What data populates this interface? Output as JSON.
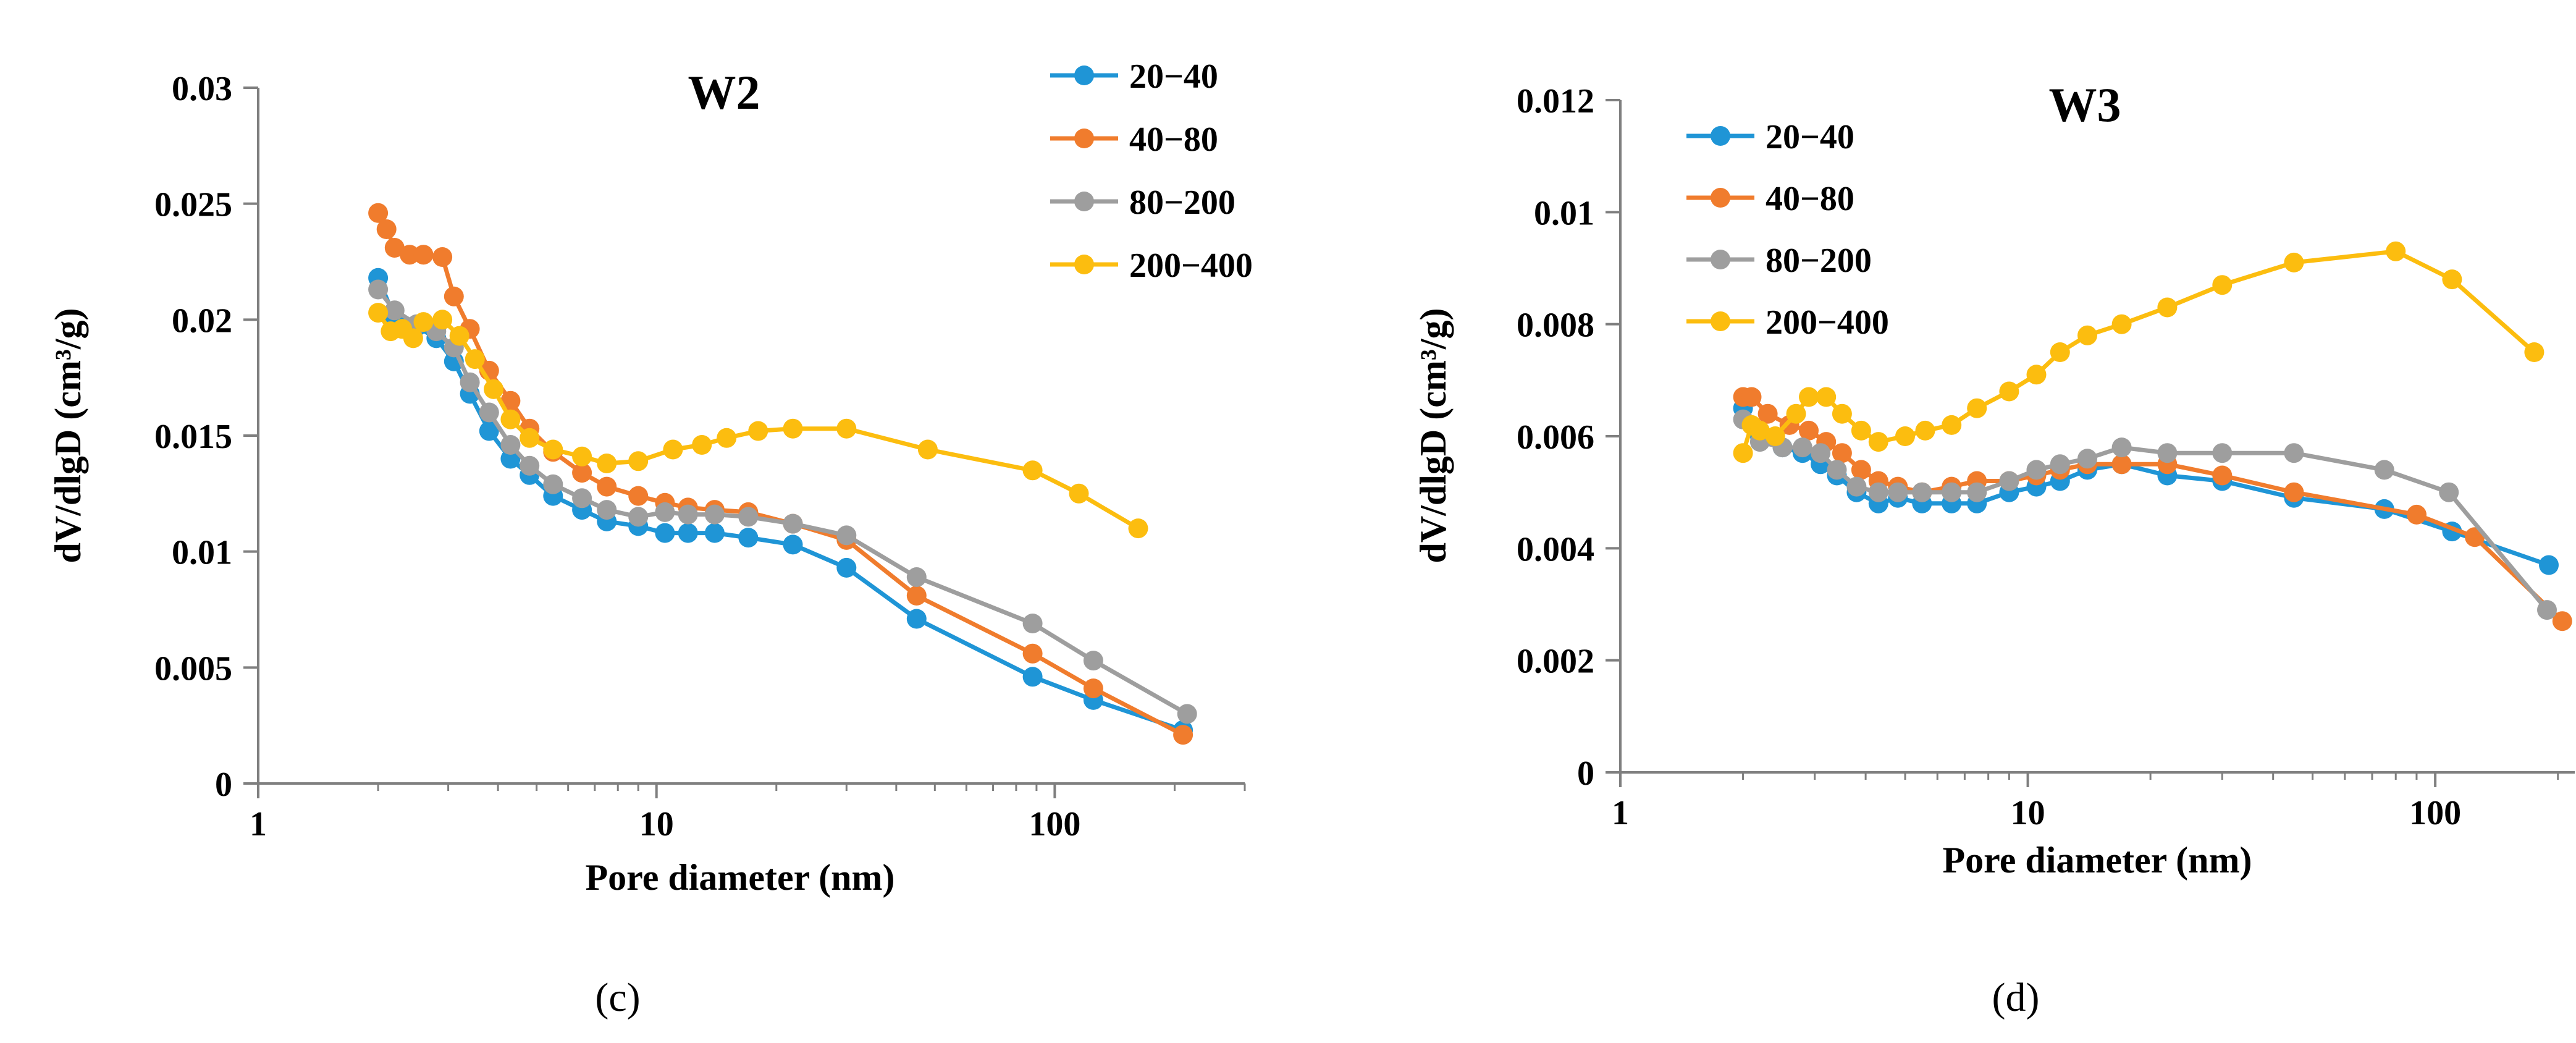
{
  "chart_data": [
    {
      "type": "line",
      "panel_label": "(c)",
      "title": "W2",
      "xlabel": "Pore diameter (nm)",
      "ylabel": "dV/dlgD (cm³/g)",
      "xscale": "log",
      "xlim": [
        1,
        300
      ],
      "ylim": [
        0,
        0.03
      ],
      "x_ticks": [
        1,
        10,
        100
      ],
      "x_tick_labels": [
        "1",
        "10",
        "100"
      ],
      "y_ticks": [
        0,
        0.005,
        0.01,
        0.015,
        0.02,
        0.025,
        0.03
      ],
      "y_tick_labels": [
        "0",
        "0.005",
        "0.01",
        "0.015",
        "0.02",
        "0.025",
        "0.03"
      ],
      "legend_position": "top-right",
      "grid": false,
      "series": [
        {
          "name": "20−40",
          "color": "#1f95d6",
          "x": [
            2.0,
            2.2,
            2.5,
            2.8,
            3.1,
            3.4,
            3.8,
            4.3,
            4.8,
            5.5,
            6.5,
            7.5,
            9.0,
            10.5,
            12.0,
            14.0,
            17.0,
            22.0,
            30.0,
            45.0,
            88.0,
            125.0,
            210.0
          ],
          "values": [
            0.0218,
            0.0201,
            0.0197,
            0.0192,
            0.0182,
            0.0168,
            0.0152,
            0.014,
            0.0133,
            0.0124,
            0.0118,
            0.0113,
            0.0111,
            0.0108,
            0.0108,
            0.0108,
            0.0106,
            0.0103,
            0.0093,
            0.0071,
            0.0046,
            0.0036,
            0.0023
          ]
        },
        {
          "name": "40−80",
          "color": "#f07c2d",
          "x": [
            2.0,
            2.1,
            2.2,
            2.4,
            2.6,
            2.9,
            3.1,
            3.4,
            3.8,
            4.3,
            4.8,
            5.5,
            6.5,
            7.5,
            9.0,
            10.5,
            12.0,
            14.0,
            17.0,
            22.0,
            30.0,
            45.0,
            88.0,
            125.0,
            210.0
          ],
          "values": [
            0.0246,
            0.0239,
            0.0231,
            0.0228,
            0.0228,
            0.0227,
            0.021,
            0.0196,
            0.0178,
            0.0165,
            0.0153,
            0.0143,
            0.0134,
            0.0128,
            0.0124,
            0.0121,
            0.0119,
            0.0118,
            0.0117,
            0.0112,
            0.0105,
            0.0081,
            0.0056,
            0.0041,
            0.0021
          ]
        },
        {
          "name": "80−200",
          "color": "#9e9e9e",
          "x": [
            2.0,
            2.2,
            2.5,
            2.8,
            3.1,
            3.4,
            3.8,
            4.3,
            4.8,
            5.5,
            6.5,
            7.5,
            9.0,
            10.5,
            12.0,
            14.0,
            17.0,
            22.0,
            30.0,
            45.0,
            88.0,
            125.0,
            215.0
          ],
          "values": [
            0.0213,
            0.0204,
            0.0198,
            0.0195,
            0.0188,
            0.0173,
            0.016,
            0.0146,
            0.0137,
            0.0129,
            0.0123,
            0.0118,
            0.0115,
            0.0117,
            0.0116,
            0.0116,
            0.0115,
            0.0112,
            0.0107,
            0.0089,
            0.0069,
            0.0053,
            0.003
          ]
        },
        {
          "name": "200−400",
          "color": "#fcbd0f",
          "x": [
            2.0,
            2.15,
            2.3,
            2.45,
            2.6,
            2.9,
            3.2,
            3.5,
            3.9,
            4.3,
            4.8,
            5.5,
            6.5,
            7.5,
            9.0,
            11.0,
            13.0,
            15.0,
            18.0,
            22.0,
            30.0,
            48.0,
            88.0,
            115.0,
            162.0
          ],
          "values": [
            0.0203,
            0.0195,
            0.0196,
            0.0192,
            0.0199,
            0.02,
            0.0193,
            0.0183,
            0.017,
            0.0157,
            0.0149,
            0.0144,
            0.0141,
            0.0138,
            0.0139,
            0.0144,
            0.0146,
            0.0149,
            0.0152,
            0.0153,
            0.0153,
            0.0144,
            0.0135,
            0.0125,
            0.011
          ]
        }
      ]
    },
    {
      "type": "line",
      "panel_label": "(d)",
      "title": "W3",
      "xlabel": "Pore diameter (nm)",
      "ylabel": "dV/dlgD (cm³/g)",
      "xscale": "log",
      "xlim": [
        1,
        220
      ],
      "ylim": [
        0,
        0.012
      ],
      "x_ticks": [
        1,
        10,
        100
      ],
      "x_tick_labels": [
        "1",
        "10",
        "100"
      ],
      "y_ticks": [
        0,
        0.002,
        0.004,
        0.006,
        0.008,
        0.01,
        0.012
      ],
      "y_tick_labels": [
        "0",
        "0.002",
        "0.004",
        "0.006",
        "0.008",
        "0.01",
        "0.012"
      ],
      "legend_position": "top-left",
      "grid": false,
      "series": [
        {
          "name": "20−40",
          "color": "#1f95d6",
          "x": [
            2.0,
            2.2,
            2.5,
            2.8,
            3.1,
            3.4,
            3.8,
            4.3,
            4.8,
            5.5,
            6.5,
            7.5,
            9.0,
            10.5,
            12.0,
            14.0,
            17.0,
            22.0,
            30.0,
            45.0,
            75.0,
            110.0,
            190.0
          ],
          "values": [
            0.0065,
            0.006,
            0.0058,
            0.0057,
            0.0055,
            0.0053,
            0.005,
            0.0048,
            0.0049,
            0.0048,
            0.0048,
            0.0048,
            0.005,
            0.0051,
            0.0052,
            0.0054,
            0.0055,
            0.0053,
            0.0052,
            0.0049,
            0.0047,
            0.0043,
            0.0037
          ]
        },
        {
          "name": "40−80",
          "color": "#f07c2d",
          "x": [
            2.0,
            2.1,
            2.3,
            2.6,
            2.9,
            3.2,
            3.5,
            3.9,
            4.3,
            4.8,
            5.5,
            6.5,
            7.5,
            9.0,
            10.5,
            12.0,
            14.0,
            17.0,
            22.0,
            30.0,
            45.0,
            90.0,
            125.0,
            205.0
          ],
          "values": [
            0.0067,
            0.0067,
            0.0064,
            0.0062,
            0.0061,
            0.0059,
            0.0057,
            0.0054,
            0.0052,
            0.0051,
            0.005,
            0.0051,
            0.0052,
            0.0052,
            0.0053,
            0.0054,
            0.0055,
            0.0055,
            0.0055,
            0.0053,
            0.005,
            0.0046,
            0.0042,
            0.0027
          ]
        },
        {
          "name": "80−200",
          "color": "#9e9e9e",
          "x": [
            2.0,
            2.2,
            2.5,
            2.8,
            3.1,
            3.4,
            3.8,
            4.3,
            4.8,
            5.5,
            6.5,
            7.5,
            9.0,
            10.5,
            12.0,
            14.0,
            17.0,
            22.0,
            30.0,
            45.0,
            75.0,
            108.0,
            188.0
          ],
          "values": [
            0.0063,
            0.0059,
            0.0058,
            0.0058,
            0.0057,
            0.0054,
            0.0051,
            0.005,
            0.005,
            0.005,
            0.005,
            0.005,
            0.0052,
            0.0054,
            0.0055,
            0.0056,
            0.0058,
            0.0057,
            0.0057,
            0.0057,
            0.0054,
            0.005,
            0.0029
          ]
        },
        {
          "name": "200−400",
          "color": "#fcbd0f",
          "x": [
            2.0,
            2.1,
            2.2,
            2.4,
            2.7,
            2.9,
            3.2,
            3.5,
            3.9,
            4.3,
            5.0,
            5.6,
            6.5,
            7.5,
            9.0,
            10.5,
            12.0,
            14.0,
            17.0,
            22.0,
            30.0,
            45.0,
            80.0,
            110.0,
            175.0
          ],
          "values": [
            0.0057,
            0.0062,
            0.0061,
            0.006,
            0.0064,
            0.0067,
            0.0067,
            0.0064,
            0.0061,
            0.0059,
            0.006,
            0.0061,
            0.0062,
            0.0065,
            0.0068,
            0.0071,
            0.0075,
            0.0078,
            0.008,
            0.0083,
            0.0087,
            0.0091,
            0.0093,
            0.0088,
            0.0075
          ]
        }
      ]
    }
  ]
}
